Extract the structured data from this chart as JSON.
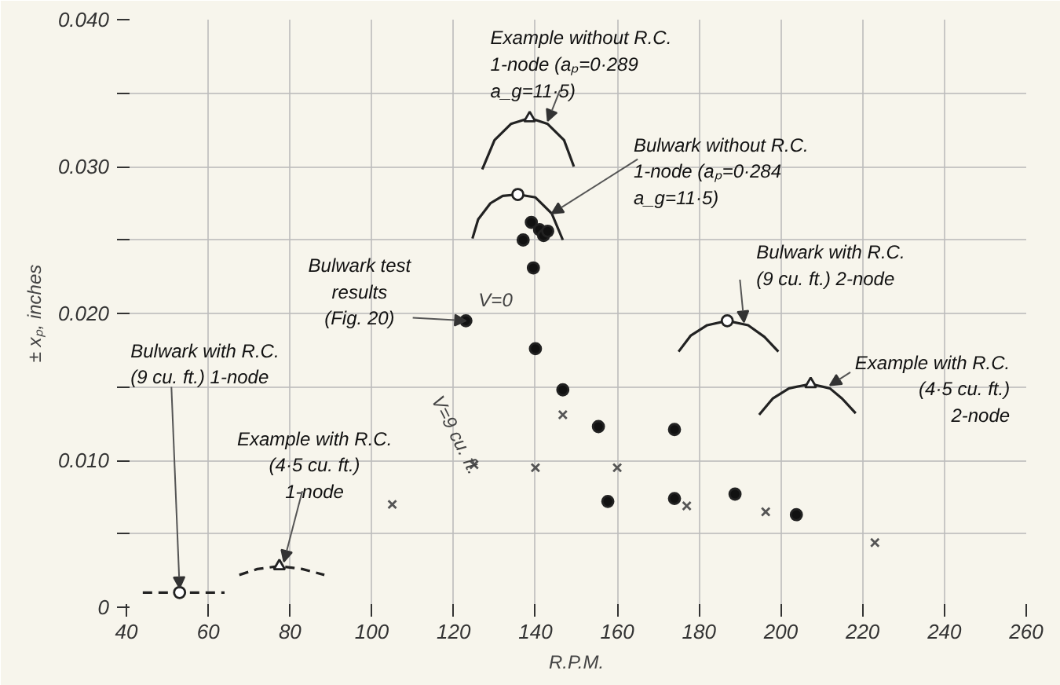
{
  "chart_data": {
    "type": "scatter",
    "xlabel": "R.P.M.",
    "ylabel": "± xₚ, inches",
    "xlim": [
      40,
      260
    ],
    "ylim": [
      0,
      0.04
    ],
    "xticks": [
      40,
      60,
      80,
      100,
      120,
      140,
      160,
      180,
      200,
      220,
      240,
      260
    ],
    "yticks": [
      {
        "value": 0,
        "label": "0"
      },
      {
        "value": 0.005,
        "label": null
      },
      {
        "value": 0.01,
        "label": "0.010"
      },
      {
        "value": 0.015,
        "label": null
      },
      {
        "value": 0.02,
        "label": "0.020"
      },
      {
        "value": 0.025,
        "label": null
      },
      {
        "value": 0.03,
        "label": "0.030"
      },
      {
        "value": 0.035,
        "label": null
      },
      {
        "value": 0.04,
        "label": "0.040"
      }
    ],
    "grid": true,
    "series": [
      {
        "name": "V=0",
        "marker": "circle",
        "color": "#111111",
        "x": [
          123,
          137,
          139,
          141,
          142,
          143,
          139.5,
          140,
          146.7,
          155.4,
          174,
          157.7,
          174,
          188.8,
          203.8
        ],
        "values": [
          0.0195,
          0.025,
          0.0262,
          0.0257,
          0.0253,
          0.0256,
          0.0231,
          0.0176,
          0.0148,
          0.0123,
          0.0121,
          0.0072,
          0.0074,
          0.0077,
          0.0063
        ]
      },
      {
        "name": "V=9 cu. ft.",
        "marker": "cross",
        "color": "#555555",
        "x": [
          125,
          105,
          146.7,
          140,
          160,
          177,
          196.3,
          223
        ],
        "values": [
          0.0097,
          0.007,
          0.0131,
          0.0095,
          0.0095,
          0.0069,
          0.0065,
          0.0044
        ]
      },
      {
        "type": "line",
        "line_style": "solid",
        "color": "#222222",
        "x": [
          127,
          130,
          134,
          138.6,
          143,
          147,
          149.4
        ],
        "values": [
          0.0298,
          0.0318,
          0.0329,
          0.0333,
          0.0329,
          0.0318,
          0.03
        ]
      },
      {
        "type": "line",
        "line_style": "solid",
        "color": "#222222",
        "x": [
          124.6,
          126,
          129,
          132,
          135.7,
          140,
          144,
          146.7
        ],
        "values": [
          0.0251,
          0.0264,
          0.0275,
          0.028,
          0.0281,
          0.0279,
          0.0268,
          0.025
        ]
      },
      {
        "type": "line",
        "line_style": "solid",
        "color": "#222222",
        "x": [
          175,
          178,
          182,
          186.9,
          192,
          196,
          199.4
        ],
        "values": [
          0.0174,
          0.0185,
          0.0192,
          0.0195,
          0.0192,
          0.0184,
          0.0174
        ]
      },
      {
        "type": "line",
        "line_style": "solid",
        "color": "#222222",
        "x": [
          194.7,
          198,
          202,
          207.3,
          212,
          215,
          218.3
        ],
        "values": [
          0.0131,
          0.0142,
          0.0149,
          0.0152,
          0.0149,
          0.0142,
          0.0132
        ]
      },
      {
        "type": "line",
        "line_style": "dashed",
        "color": "#222222",
        "x": [
          44,
          48,
          53,
          58,
          64
        ],
        "values": [
          0.001,
          0.001,
          0.001,
          0.001,
          0.001
        ]
      },
      {
        "type": "line",
        "line_style": "dashed",
        "color": "#222222",
        "x": [
          67.6,
          72,
          77.4,
          83,
          88.4
        ],
        "values": [
          0.0022,
          0.0026,
          0.0028,
          0.0026,
          0.0022
        ]
      },
      {
        "type": "scatter",
        "marker": "circle",
        "color": "#ffffff",
        "x": [
          135.7,
          186.9,
          53
        ],
        "values": [
          0.0281,
          0.0195,
          0.001
        ]
      },
      {
        "type": "scatter",
        "marker": "triangle",
        "color": "#ffffff",
        "x": [
          138.6,
          207.3,
          77.4
        ],
        "values": [
          0.0333,
          0.0152,
          0.0028
        ]
      }
    ],
    "annotations": [
      {
        "text": "Example without R.C.\n1-node (aₚ=0·289\n             a_g=11·5)",
        "x": 143,
        "y": 0.0331
      },
      {
        "text": "Bulwark without R.C.\n1-node (aₚ=0·284\n             a_g=11·5)",
        "x": 144,
        "y": 0.0268
      },
      {
        "text": "Bulwark test\nresults\n(Fig. 20)",
        "x": 123,
        "y": 0.0195
      },
      {
        "text": "Bulwark with R.C.\n(9 cu. ft.) 2-node",
        "x": 191,
        "y": 0.0194
      },
      {
        "text": "Example with R.C.\n(4·5 cu. ft.)\n2-node",
        "x": 212,
        "y": 0.0151
      },
      {
        "text": "Bulwark with R.C.\n(9 cu. ft.) 1-node",
        "x": 53,
        "y": 0.0013
      },
      {
        "text": "Example with R.C.\n(4·5 cu. ft.)\n1-node",
        "x": 78.5,
        "y": 0.0031
      }
    ]
  }
}
